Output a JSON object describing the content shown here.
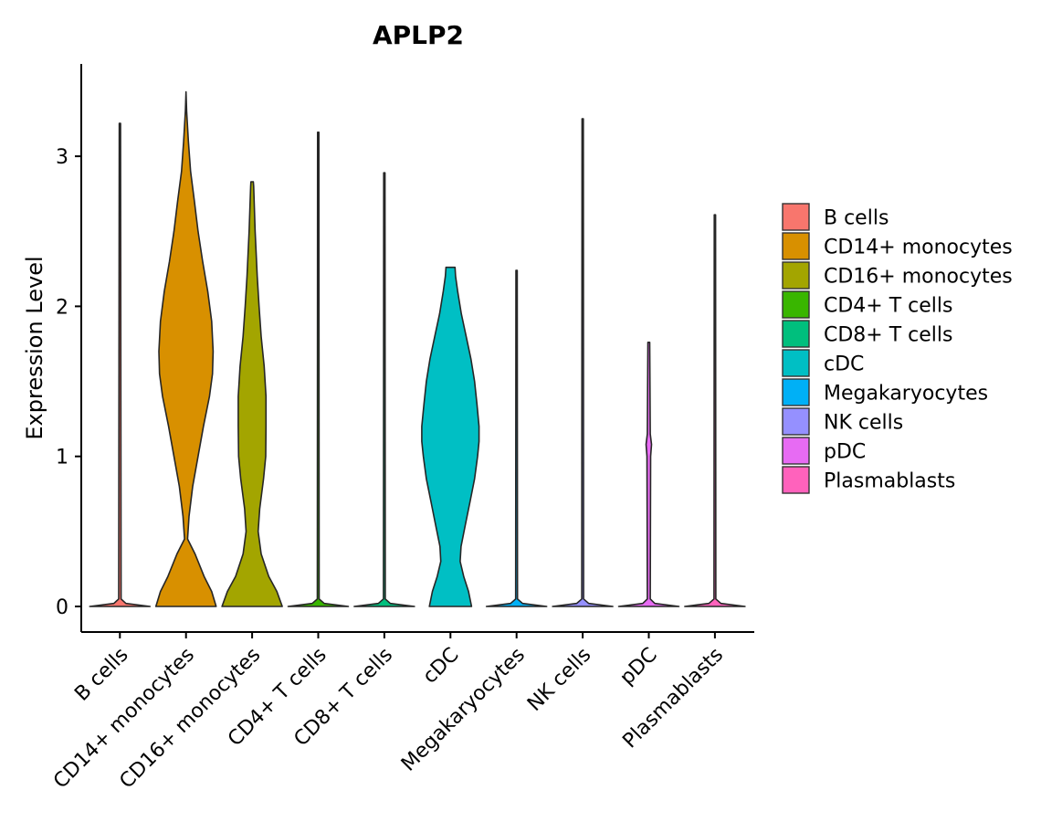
{
  "chart_data": {
    "type": "violin",
    "title": "APLP2",
    "xlabel": "",
    "ylabel": "Expression Level",
    "ylim": [
      -0.17,
      3.6
    ],
    "yticks": [
      0,
      1,
      2,
      3
    ],
    "categories": [
      {
        "name": "B cells",
        "color": "#F8766D",
        "max": 3.22,
        "profile": [
          [
            0,
            1.0
          ],
          [
            0.02,
            0.2
          ],
          [
            0.05,
            0.04
          ],
          [
            3.22,
            0.02
          ]
        ]
      },
      {
        "name": "CD14+ monocytes",
        "color": "#D89000",
        "max": 3.43,
        "profile": [
          [
            0,
            1.0
          ],
          [
            0.1,
            0.85
          ],
          [
            0.2,
            0.6
          ],
          [
            0.35,
            0.3
          ],
          [
            0.45,
            0.05
          ],
          [
            0.6,
            0.1
          ],
          [
            0.8,
            0.22
          ],
          [
            1.0,
            0.4
          ],
          [
            1.2,
            0.58
          ],
          [
            1.4,
            0.78
          ],
          [
            1.55,
            0.88
          ],
          [
            1.7,
            0.9
          ],
          [
            1.9,
            0.85
          ],
          [
            2.1,
            0.72
          ],
          [
            2.3,
            0.55
          ],
          [
            2.5,
            0.4
          ],
          [
            2.7,
            0.28
          ],
          [
            2.9,
            0.15
          ],
          [
            3.1,
            0.08
          ],
          [
            3.3,
            0.02
          ],
          [
            3.43,
            0.0
          ]
        ]
      },
      {
        "name": "CD16+ monocytes",
        "color": "#A3A500",
        "max": 2.83,
        "profile": [
          [
            0,
            1.0
          ],
          [
            0.1,
            0.82
          ],
          [
            0.2,
            0.55
          ],
          [
            0.35,
            0.3
          ],
          [
            0.5,
            0.2
          ],
          [
            0.65,
            0.25
          ],
          [
            0.85,
            0.38
          ],
          [
            1.0,
            0.45
          ],
          [
            1.2,
            0.46
          ],
          [
            1.4,
            0.46
          ],
          [
            1.6,
            0.4
          ],
          [
            1.8,
            0.3
          ],
          [
            2.0,
            0.23
          ],
          [
            2.2,
            0.17
          ],
          [
            2.5,
            0.1
          ],
          [
            2.8,
            0.05
          ],
          [
            2.83,
            0.04
          ]
        ]
      },
      {
        "name": "CD4+ T cells",
        "color": "#39B600",
        "max": 3.16,
        "profile": [
          [
            0,
            1.0
          ],
          [
            0.02,
            0.2
          ],
          [
            0.05,
            0.03
          ],
          [
            3.16,
            0.02
          ]
        ]
      },
      {
        "name": "CD8+ T cells",
        "color": "#00BF7D",
        "max": 2.89,
        "profile": [
          [
            0,
            1.0
          ],
          [
            0.02,
            0.2
          ],
          [
            0.05,
            0.03
          ],
          [
            2.89,
            0.02
          ]
        ]
      },
      {
        "name": "cDC",
        "color": "#00BFC4",
        "max": 2.26,
        "profile": [
          [
            0,
            0.7
          ],
          [
            0.1,
            0.6
          ],
          [
            0.2,
            0.44
          ],
          [
            0.3,
            0.32
          ],
          [
            0.4,
            0.35
          ],
          [
            0.55,
            0.5
          ],
          [
            0.7,
            0.65
          ],
          [
            0.85,
            0.8
          ],
          [
            1.0,
            0.9
          ],
          [
            1.1,
            0.95
          ],
          [
            1.2,
            0.95
          ],
          [
            1.35,
            0.88
          ],
          [
            1.5,
            0.8
          ],
          [
            1.65,
            0.68
          ],
          [
            1.8,
            0.52
          ],
          [
            1.95,
            0.36
          ],
          [
            2.1,
            0.24
          ],
          [
            2.2,
            0.17
          ],
          [
            2.26,
            0.15
          ]
        ]
      },
      {
        "name": "Megakaryocytes",
        "color": "#00B0F6",
        "max": 2.24,
        "profile": [
          [
            0,
            1.0
          ],
          [
            0.02,
            0.2
          ],
          [
            0.05,
            0.03
          ],
          [
            2.24,
            0.02
          ]
        ]
      },
      {
        "name": "NK cells",
        "color": "#9590FF",
        "max": 3.25,
        "profile": [
          [
            0,
            1.0
          ],
          [
            0.02,
            0.2
          ],
          [
            0.05,
            0.03
          ],
          [
            3.25,
            0.02
          ]
        ]
      },
      {
        "name": "pDC",
        "color": "#E76BF3",
        "max": 1.76,
        "profile": [
          [
            0,
            1.0
          ],
          [
            0.02,
            0.2
          ],
          [
            0.05,
            0.05
          ],
          [
            1.0,
            0.06
          ],
          [
            1.08,
            0.09
          ],
          [
            1.15,
            0.05
          ],
          [
            1.76,
            0.03
          ]
        ]
      },
      {
        "name": "Plasmablasts",
        "color": "#FF62BC",
        "max": 2.61,
        "profile": [
          [
            0,
            1.0
          ],
          [
            0.02,
            0.2
          ],
          [
            0.05,
            0.03
          ],
          [
            2.61,
            0.02
          ]
        ]
      }
    ],
    "legend": {
      "position": "right"
    }
  }
}
